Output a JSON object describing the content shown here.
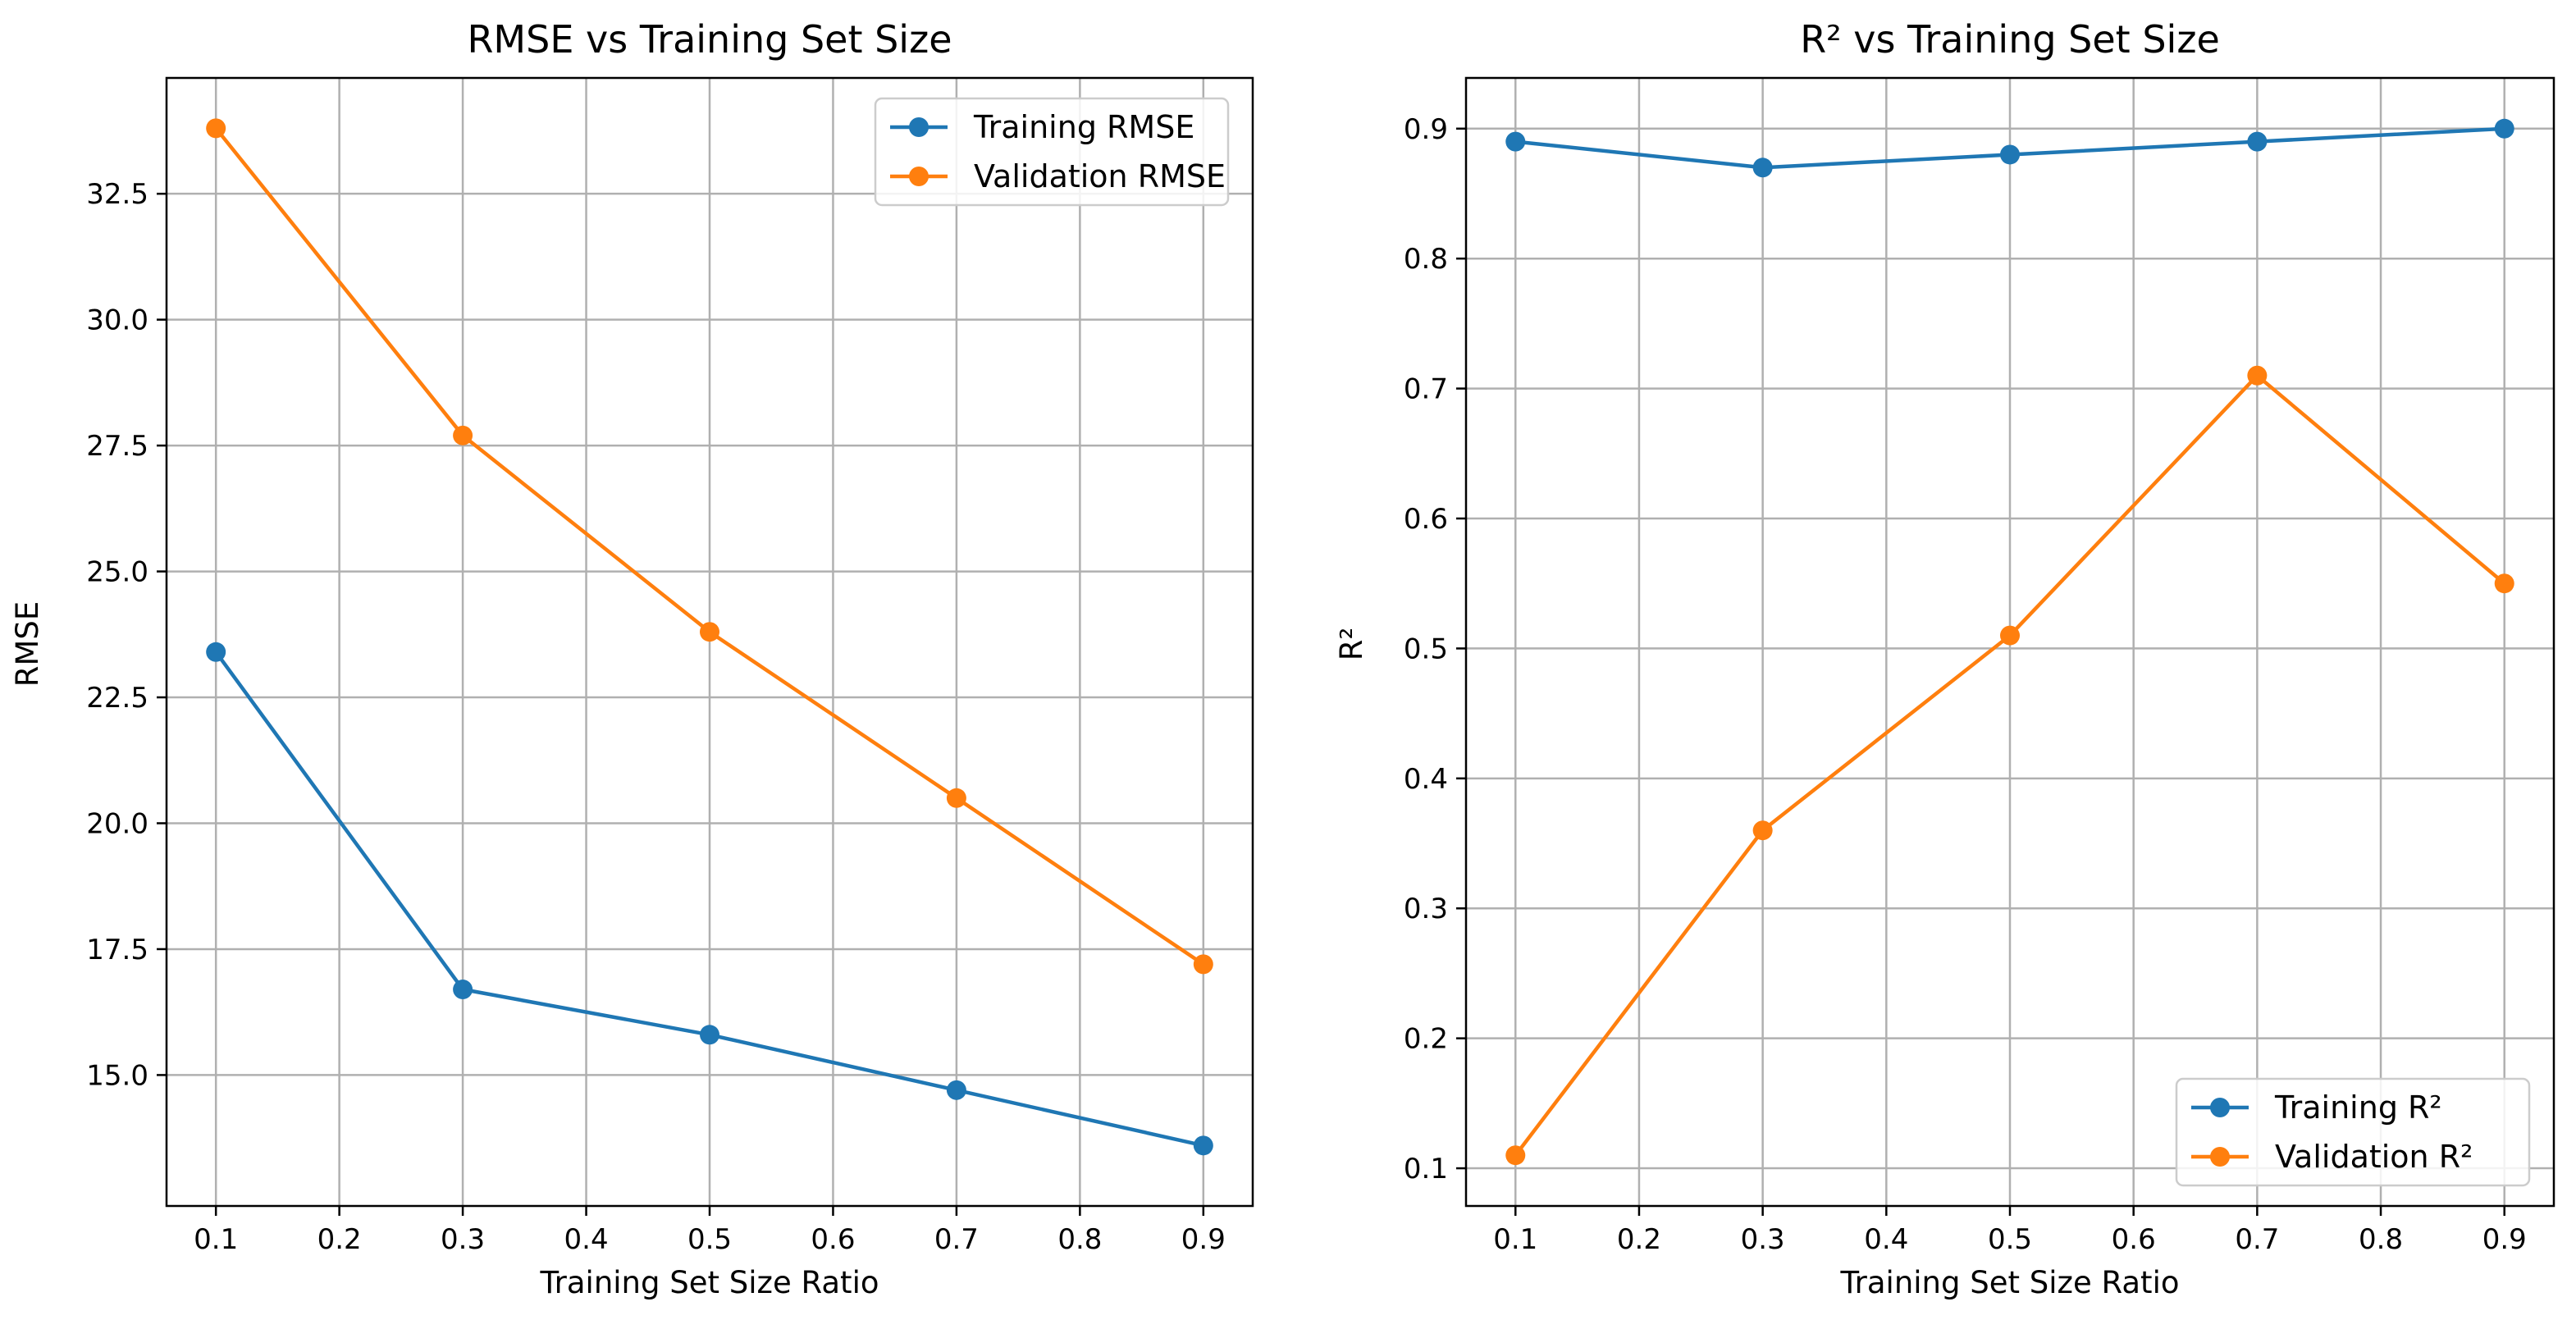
{
  "chart_data": [
    {
      "type": "line",
      "title": "RMSE vs Training Set Size",
      "xlabel": "Training Set Size Ratio",
      "ylabel": "RMSE",
      "x": [
        0.1,
        0.3,
        0.5,
        0.7,
        0.9
      ],
      "xlim": [
        0.06,
        0.94
      ],
      "ylim": [
        12.4,
        34.8
      ],
      "xticks": [
        "0.1",
        "0.2",
        "0.3",
        "0.4",
        "0.5",
        "0.6",
        "0.7",
        "0.8",
        "0.9"
      ],
      "yticks": [
        "15.0",
        "17.5",
        "20.0",
        "22.5",
        "25.0",
        "27.5",
        "30.0",
        "32.5"
      ],
      "grid": true,
      "legend_position": "top-right",
      "series": [
        {
          "name": "Training RMSE",
          "color": "#1f77b4",
          "values": [
            23.4,
            16.7,
            15.8,
            14.7,
            13.6
          ]
        },
        {
          "name": "Validation RMSE",
          "color": "#ff7f0e",
          "values": [
            33.8,
            27.7,
            23.8,
            20.5,
            17.2
          ]
        }
      ]
    },
    {
      "type": "line",
      "title": "R² vs Training Set Size",
      "xlabel": "Training Set Size Ratio",
      "ylabel": "R²",
      "x": [
        0.1,
        0.3,
        0.5,
        0.7,
        0.9
      ],
      "xlim": [
        0.06,
        0.94
      ],
      "ylim": [
        0.071,
        0.939
      ],
      "xticks": [
        "0.1",
        "0.2",
        "0.3",
        "0.4",
        "0.5",
        "0.6",
        "0.7",
        "0.8",
        "0.9"
      ],
      "yticks": [
        "0.1",
        "0.2",
        "0.3",
        "0.4",
        "0.5",
        "0.6",
        "0.7",
        "0.8",
        "0.9"
      ],
      "grid": true,
      "legend_position": "bottom-right",
      "series": [
        {
          "name": "Training R²",
          "color": "#1f77b4",
          "values": [
            0.89,
            0.87,
            0.88,
            0.89,
            0.9
          ]
        },
        {
          "name": "Validation R²",
          "color": "#ff7f0e",
          "values": [
            0.11,
            0.36,
            0.51,
            0.71,
            0.55
          ]
        }
      ]
    }
  ]
}
